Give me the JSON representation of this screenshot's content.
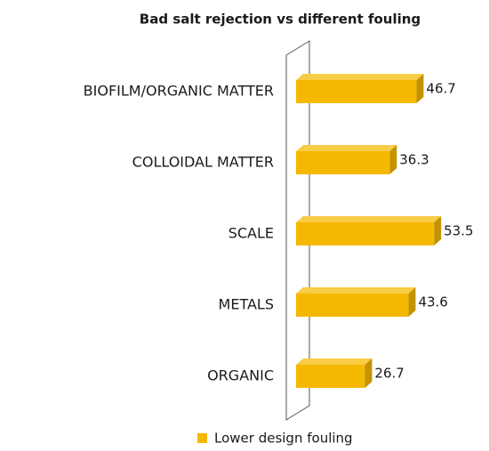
{
  "chart_data": {
    "type": "bar",
    "orientation": "horizontal",
    "title": "Bad salt rejection vs different fouling",
    "categories": [
      "BIOFILM/ORGANIC MATTER",
      "COLLOIDAL MATTER",
      "SCALE",
      "METALS",
      "ORGANIC"
    ],
    "series": [
      {
        "name": "Lower design fouling",
        "color": "#f5b800",
        "values": [
          46.7,
          36.3,
          53.5,
          43.6,
          26.7
        ]
      }
    ],
    "xlim": [
      0,
      60
    ],
    "legend": "bottom"
  }
}
